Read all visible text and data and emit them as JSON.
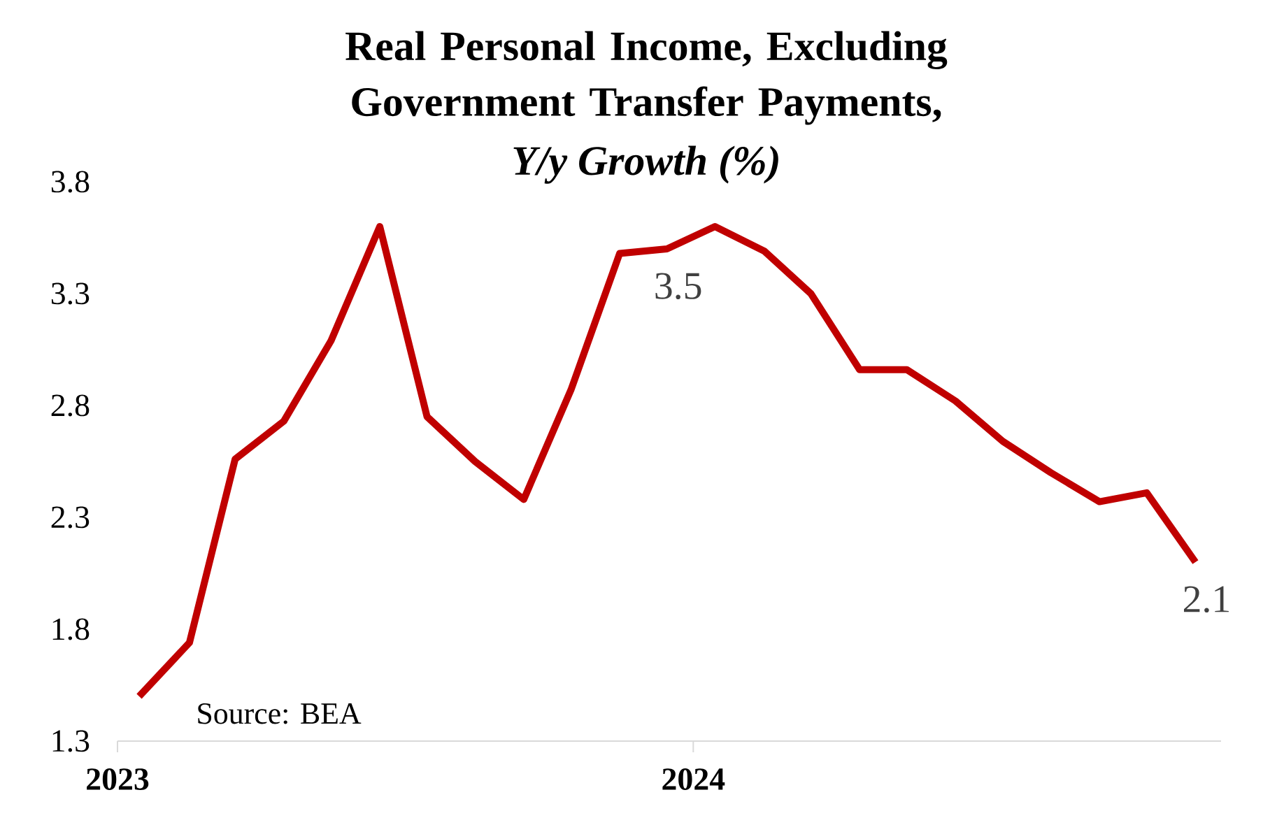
{
  "chart_data": {
    "type": "line",
    "title": "Real Personal Income, Excluding Government Transfer Payments,",
    "subtitle": "Y/y Growth (%)",
    "x": [
      "2023-01-15",
      "2023-02-15",
      "2023-03-15",
      "2023-04-15",
      "2023-05-15",
      "2023-06-15",
      "2023-07-15",
      "2023-08-15",
      "2023-09-15",
      "2023-10-15",
      "2023-11-15",
      "2023-12-15",
      "2024-01-15",
      "2024-02-15",
      "2024-03-15",
      "2024-04-15",
      "2024-05-15",
      "2024-06-15",
      "2024-07-15",
      "2024-08-15",
      "2024-09-15",
      "2024-10-15",
      "2024-11-15"
    ],
    "series": [
      {
        "color": "#c00000",
        "values": [
          1.5,
          1.74,
          2.56,
          2.73,
          3.09,
          3.6,
          2.75,
          2.55,
          2.38,
          2.87,
          3.48,
          3.5,
          3.6,
          3.49,
          3.3,
          2.96,
          2.96,
          2.82,
          2.64,
          2.5,
          2.37,
          2.41,
          2.1
        ],
        "value_labels": [
          null,
          null,
          null,
          null,
          null,
          null,
          null,
          null,
          null,
          null,
          null,
          "3.5",
          null,
          null,
          null,
          null,
          null,
          null,
          null,
          null,
          null,
          null,
          "2.1"
        ]
      }
    ],
    "xlim": [
      "2023-01-01",
      "2024-12-01"
    ],
    "xticks": [
      {
        "value": "2023-01-01",
        "label": "2023"
      },
      {
        "value": "2024-01-01",
        "label": "2024"
      }
    ],
    "ylim": [
      1.3,
      3.8
    ],
    "yticks": [
      1.3,
      1.8,
      2.3,
      2.8,
      3.3,
      3.8
    ],
    "annotations": [
      "Source: BEA"
    ]
  }
}
